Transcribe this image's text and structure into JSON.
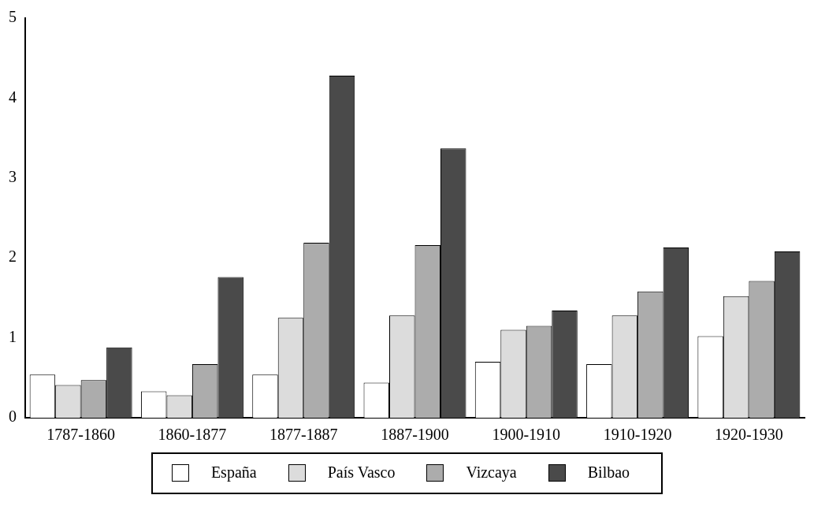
{
  "chart_data": {
    "type": "bar",
    "categories": [
      "1787-1860",
      "1860-1877",
      "1877-1887",
      "1887-1900",
      "1900-1910",
      "1910-1920",
      "1920-1930"
    ],
    "series": [
      {
        "name": "España",
        "color": "#ffffff",
        "values": [
          0.54,
          0.33,
          0.54,
          0.44,
          0.7,
          0.67,
          1.02
        ]
      },
      {
        "name": "País Vasco",
        "color": "#dcdcdc",
        "values": [
          0.41,
          0.28,
          1.25,
          1.28,
          1.1,
          1.28,
          1.52
        ]
      },
      {
        "name": "Vizcaya",
        "color": "#acacac",
        "values": [
          0.47,
          0.67,
          2.19,
          2.16,
          1.15,
          1.58,
          1.71
        ]
      },
      {
        "name": "Bilbao",
        "color": "#4a4a4a",
        "values": [
          0.88,
          1.76,
          4.28,
          3.37,
          1.34,
          2.13,
          2.08
        ]
      }
    ],
    "ylim": [
      0,
      5
    ],
    "yticks": [
      0,
      1,
      2,
      3,
      4,
      5
    ],
    "grid": false,
    "legend": "bottom"
  }
}
